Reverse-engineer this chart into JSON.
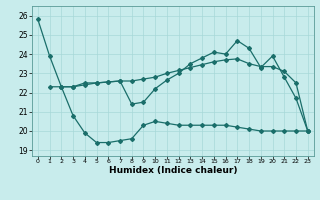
{
  "xlabel": "Humidex (Indice chaleur)",
  "background_color": "#c8ecec",
  "grid_color": "#a8d8d8",
  "line_color": "#1a6e6a",
  "xlim": [
    -0.5,
    23.5
  ],
  "ylim": [
    18.7,
    26.5
  ],
  "yticks": [
    19,
    20,
    21,
    22,
    23,
    24,
    25,
    26
  ],
  "xticks": [
    0,
    1,
    2,
    3,
    4,
    5,
    6,
    7,
    8,
    9,
    10,
    11,
    12,
    13,
    14,
    15,
    16,
    17,
    18,
    19,
    20,
    21,
    22,
    23
  ],
  "line1_x": [
    0,
    1,
    2,
    3,
    4,
    5,
    6,
    7,
    8,
    9,
    10,
    11,
    12,
    13,
    14,
    15,
    16,
    17,
    18,
    19,
    20,
    21,
    22,
    23
  ],
  "line1_y": [
    25.8,
    23.9,
    22.3,
    22.3,
    22.5,
    22.5,
    22.55,
    22.6,
    21.4,
    21.5,
    22.2,
    22.65,
    23.0,
    23.5,
    23.8,
    24.1,
    24.0,
    24.7,
    24.3,
    23.3,
    23.9,
    22.8,
    21.7,
    20.0
  ],
  "line2_x": [
    1,
    2,
    3,
    4,
    5,
    6,
    7,
    8,
    9,
    10,
    11,
    12,
    13,
    14,
    15,
    16,
    17,
    18,
    19,
    20,
    21,
    22,
    23
  ],
  "line2_y": [
    22.3,
    22.3,
    22.3,
    22.4,
    22.5,
    22.55,
    22.6,
    22.6,
    22.7,
    22.8,
    23.0,
    23.15,
    23.3,
    23.45,
    23.6,
    23.7,
    23.75,
    23.5,
    23.35,
    23.35,
    23.1,
    22.5,
    20.0
  ],
  "line3_x": [
    2,
    3,
    4,
    5,
    6,
    7,
    8,
    9,
    10,
    11,
    12,
    13,
    14,
    15,
    16,
    17,
    18,
    19,
    20,
    21,
    22,
    23
  ],
  "line3_y": [
    22.3,
    20.8,
    19.9,
    19.4,
    19.4,
    19.5,
    19.6,
    20.3,
    20.5,
    20.4,
    20.3,
    20.3,
    20.3,
    20.3,
    20.3,
    20.2,
    20.1,
    20.0,
    20.0,
    20.0,
    20.0,
    20.0
  ]
}
